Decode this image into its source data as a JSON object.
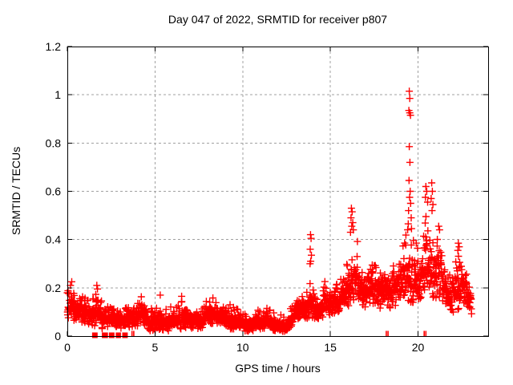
{
  "figure": {
    "title": "Day 047 of 2022, SRMTID for receiver p807",
    "xlabel": "GPS time / hours",
    "ylabel": "SRMTID / TECUs"
  },
  "chart_data": {
    "type": "scatter",
    "title": "Day 047 of 2022, SRMTID for receiver p807",
    "xlabel": "GPS time / hours",
    "ylabel": "SRMTID / TECUs",
    "xlim": [
      0,
      24
    ],
    "ylim": [
      0,
      1.2
    ],
    "xticks": [
      0,
      5,
      10,
      15,
      20
    ],
    "xtick_labels": [
      "0",
      "5",
      "10",
      "15",
      "20"
    ],
    "yticks": [
      0,
      0.2,
      0.4,
      0.6,
      0.8,
      1,
      1.2
    ],
    "ytick_labels": [
      "0",
      "0.2",
      "0.4",
      "0.6",
      "0.8",
      "1",
      "1.2"
    ],
    "grid": true,
    "legend": "none",
    "marker": "plus",
    "marker_color": "#ff0000",
    "grid_color": "#a0a0a0",
    "axis_color": "#000000",
    "sample_step_hours": 0.0102,
    "x_start": 0.0,
    "x_end": 23.06,
    "envelope": [
      [
        0.0,
        0.05,
        0.2
      ],
      [
        0.3,
        0.06,
        0.22
      ],
      [
        0.6,
        0.05,
        0.18
      ],
      [
        1.0,
        0.05,
        0.16
      ],
      [
        1.4,
        0.04,
        0.15
      ],
      [
        1.7,
        0.04,
        0.21
      ],
      [
        2.0,
        0.03,
        0.13
      ],
      [
        2.5,
        0.02,
        0.12
      ],
      [
        3.0,
        0.02,
        0.1
      ],
      [
        3.5,
        0.02,
        0.12
      ],
      [
        4.0,
        0.02,
        0.13
      ],
      [
        4.2,
        0.03,
        0.16
      ],
      [
        4.6,
        0.02,
        0.11
      ],
      [
        5.0,
        0.02,
        0.12
      ],
      [
        5.3,
        0.03,
        0.16
      ],
      [
        5.7,
        0.02,
        0.12
      ],
      [
        6.0,
        0.03,
        0.12
      ],
      [
        6.5,
        0.03,
        0.16
      ],
      [
        7.0,
        0.02,
        0.11
      ],
      [
        7.5,
        0.02,
        0.1
      ],
      [
        7.9,
        0.03,
        0.14
      ],
      [
        8.3,
        0.03,
        0.15
      ],
      [
        8.7,
        0.03,
        0.12
      ],
      [
        9.2,
        0.03,
        0.13
      ],
      [
        9.6,
        0.03,
        0.12
      ],
      [
        10.0,
        0.02,
        0.09
      ],
      [
        10.5,
        0.02,
        0.1
      ],
      [
        11.0,
        0.03,
        0.11
      ],
      [
        11.5,
        0.03,
        0.12
      ],
      [
        12.0,
        0.02,
        0.09
      ],
      [
        12.4,
        0.02,
        0.08
      ],
      [
        12.8,
        0.04,
        0.12
      ],
      [
        13.2,
        0.05,
        0.15
      ],
      [
        13.6,
        0.07,
        0.19
      ],
      [
        13.9,
        0.08,
        0.26
      ],
      [
        14.2,
        0.07,
        0.2
      ],
      [
        14.6,
        0.08,
        0.22
      ],
      [
        15.0,
        0.09,
        0.24
      ],
      [
        15.4,
        0.1,
        0.26
      ],
      [
        15.8,
        0.11,
        0.28
      ],
      [
        16.1,
        0.13,
        0.38
      ],
      [
        16.35,
        0.14,
        0.42
      ],
      [
        16.7,
        0.14,
        0.36
      ],
      [
        17.0,
        0.12,
        0.32
      ],
      [
        17.5,
        0.1,
        0.3
      ],
      [
        17.9,
        0.08,
        0.27
      ],
      [
        18.3,
        0.09,
        0.28
      ],
      [
        18.7,
        0.12,
        0.3
      ],
      [
        19.1,
        0.14,
        0.36
      ],
      [
        19.4,
        0.15,
        0.44
      ],
      [
        19.6,
        0.14,
        0.42
      ],
      [
        19.9,
        0.14,
        0.38
      ],
      [
        20.2,
        0.15,
        0.4
      ],
      [
        20.45,
        0.17,
        0.52
      ],
      [
        20.7,
        0.16,
        0.5
      ],
      [
        21.0,
        0.14,
        0.44
      ],
      [
        21.3,
        0.11,
        0.38
      ],
      [
        21.6,
        0.09,
        0.32
      ],
      [
        21.9,
        0.06,
        0.24
      ],
      [
        22.2,
        0.09,
        0.34
      ],
      [
        22.5,
        0.1,
        0.32
      ],
      [
        22.8,
        0.07,
        0.26
      ],
      [
        23.05,
        0.07,
        0.2
      ]
    ],
    "peak_points": [
      [
        19.5,
        1.015
      ],
      [
        19.53,
        0.985
      ],
      [
        19.48,
        0.935
      ],
      [
        19.53,
        0.925
      ],
      [
        19.57,
        0.915
      ],
      [
        19.5,
        0.785
      ],
      [
        19.54,
        0.72
      ],
      [
        19.49,
        0.645
      ],
      [
        19.55,
        0.6
      ],
      [
        19.52,
        0.575
      ],
      [
        19.58,
        0.55
      ],
      [
        19.46,
        0.52
      ],
      [
        19.61,
        0.49
      ],
      [
        19.44,
        0.465
      ],
      [
        19.63,
        0.445
      ],
      [
        16.2,
        0.53
      ],
      [
        16.24,
        0.515
      ],
      [
        16.18,
        0.49
      ],
      [
        16.28,
        0.47
      ],
      [
        16.22,
        0.455
      ],
      [
        16.31,
        0.44
      ],
      [
        16.15,
        0.43
      ],
      [
        13.87,
        0.42
      ],
      [
        13.9,
        0.405
      ],
      [
        13.85,
        0.36
      ],
      [
        13.92,
        0.335
      ],
      [
        13.88,
        0.31
      ],
      [
        13.84,
        0.3
      ],
      [
        20.45,
        0.62
      ],
      [
        20.5,
        0.6
      ],
      [
        20.42,
        0.575
      ],
      [
        20.55,
        0.555
      ],
      [
        20.78,
        0.635
      ],
      [
        20.82,
        0.6
      ],
      [
        20.75,
        0.57
      ],
      [
        20.85,
        0.545
      ],
      [
        20.8,
        0.52
      ],
      [
        21.18,
        0.455
      ],
      [
        21.23,
        0.44
      ],
      [
        22.3,
        0.385
      ],
      [
        22.35,
        0.37
      ],
      [
        22.27,
        0.355
      ],
      [
        0.25,
        0.225
      ],
      [
        0.18,
        0.21
      ],
      [
        1.68,
        0.21
      ],
      [
        1.72,
        0.195
      ],
      [
        4.22,
        0.163
      ],
      [
        5.3,
        0.17
      ],
      [
        6.52,
        0.165
      ],
      [
        8.3,
        0.158
      ]
    ],
    "zero_value_clusters": [
      [
        1.48,
        1.66
      ],
      [
        2.04,
        2.25
      ],
      [
        2.44,
        2.62
      ],
      [
        2.83,
        2.99
      ],
      [
        3.2,
        3.38
      ]
    ],
    "zero_value_tick_pairs": [
      3.74,
      18.24,
      20.4
    ]
  }
}
